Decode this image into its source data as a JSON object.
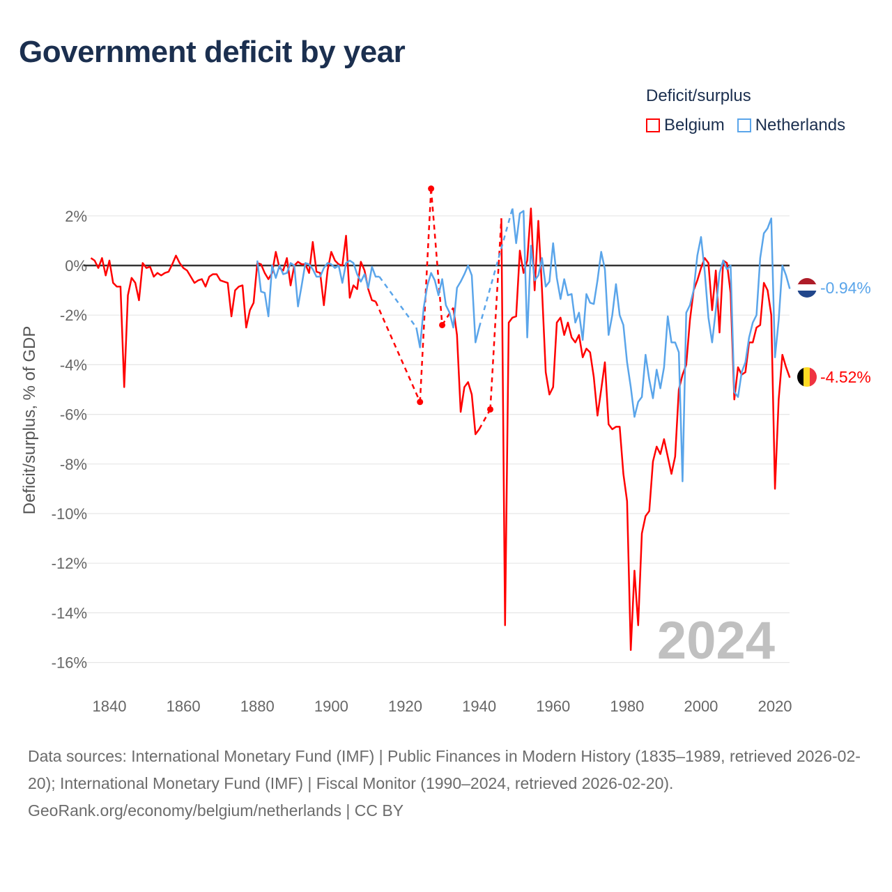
{
  "title": "Government deficit by year",
  "legend": {
    "title": "Deficit/surplus",
    "items": [
      {
        "label": "Belgium",
        "color": "#ff0000"
      },
      {
        "label": "Netherlands",
        "color": "#5aa5ea"
      }
    ]
  },
  "year_overlay": "2024",
  "end_labels": {
    "netherlands": "-0.94%",
    "belgium": "-4.52%"
  },
  "footer": {
    "sources": "Data sources: International Monetary Fund (IMF) | Public Finances in Modern History (1835–1989, retrieved 2026-02-20); International Monetary Fund (IMF) | Fiscal Monitor (1990–2024, retrieved 2026-02-20).",
    "credit": "GeoRank.org/economy/belgium/netherlands | CC BY"
  },
  "chart_data": {
    "type": "line",
    "title": "Government deficit by year",
    "xlabel": "",
    "ylabel": "Deficit/surplus, % of GDP",
    "xlim": [
      1835,
      2024
    ],
    "ylim": [
      -16,
      3.2
    ],
    "xticks": [
      1840,
      1860,
      1880,
      1900,
      1920,
      1940,
      1960,
      1980,
      2000,
      2020
    ],
    "yticks": [
      2,
      0,
      -2,
      -4,
      -6,
      -8,
      -10,
      -12,
      -14,
      -16
    ],
    "ytick_labels": [
      "2%",
      "0%",
      "-2%",
      "-4%",
      "-6%",
      "-8%",
      "-10%",
      "-12%",
      "-14%",
      "-16%"
    ],
    "grid": true,
    "legend_position": "top-right",
    "series": [
      {
        "name": "Belgium",
        "color": "#ff0000",
        "start_year": 1835,
        "values": [
          0.3,
          0.2,
          -0.1,
          0.3,
          -0.4,
          0.2,
          -0.7,
          -0.85,
          -0.85,
          -4.9,
          -1.2,
          -0.5,
          -0.7,
          -1.4,
          0.1,
          -0.1,
          -0.05,
          -0.45,
          -0.3,
          -0.4,
          -0.3,
          -0.25,
          0.05,
          0.4,
          0.1,
          -0.1,
          -0.2,
          -0.45,
          -0.7,
          -0.6,
          -0.55,
          -0.85,
          -0.45,
          -0.35,
          -0.35,
          -0.6,
          -0.65,
          -0.7,
          -2.05,
          -1.0,
          -0.85,
          -0.8,
          -2.5,
          -1.8,
          -1.5,
          0.1,
          0.05,
          -0.3,
          -0.55,
          -0.3,
          0.55,
          -0.1,
          -0.2,
          0.3,
          -0.8,
          0.0,
          0.15,
          0.05,
          0.05,
          -0.3,
          0.95,
          -0.25,
          -0.3,
          -1.6,
          -0.2,
          0.55,
          0.2,
          0.05,
          0.0,
          1.2,
          -1.3,
          -0.8,
          -0.95,
          0.15,
          -0.2,
          -0.95,
          -1.4,
          -1.45,
          null,
          null,
          null,
          null,
          null,
          null,
          null,
          null,
          null,
          null,
          null,
          -5.5,
          null,
          null,
          3.1,
          null,
          null,
          -2.4,
          null,
          null,
          -1.7,
          -2.8,
          -5.9,
          -4.9,
          -4.7,
          -5.2,
          -6.8,
          -6.6,
          null,
          null,
          -5.8,
          null,
          null,
          1.9,
          -14.5,
          -2.3,
          -2.1,
          -2.05,
          0.6,
          -0.3,
          0.2,
          2.3,
          -1.0,
          1.8,
          -1.0,
          -4.3,
          -5.2,
          -4.9,
          -2.3,
          -2.1,
          -2.8,
          -2.3,
          -2.9,
          -3.1,
          -2.8,
          -3.7,
          -3.35,
          -3.5,
          -4.5,
          -6.05,
          -5.0,
          -3.9,
          -6.4,
          -6.6,
          -6.5,
          -6.5,
          -8.4,
          -9.5,
          -15.5,
          -12.3,
          -14.5,
          -10.8,
          -10.1,
          -9.9,
          -7.9,
          -7.3,
          -7.6,
          -7.0,
          -7.7,
          -8.4,
          -7.7,
          -5.0,
          -4.4,
          -4.0,
          -2.2,
          -1.0,
          -0.6,
          -0.1,
          0.3,
          0.1,
          -1.8,
          -0.2,
          -2.7,
          0.2,
          0.1,
          -1.1,
          -5.4,
          -4.1,
          -4.4,
          -4.3,
          -3.1,
          -3.1,
          -2.5,
          -2.4,
          -0.7,
          -1.0,
          -2.0,
          -9.0,
          -5.4,
          -3.6,
          -4.1,
          -4.52
        ]
      },
      {
        "name": "Netherlands",
        "color": "#5aa5ea",
        "start_year": 1880,
        "values": [
          0.2,
          -1.05,
          -1.1,
          -2.05,
          0.0,
          -0.5,
          0.0,
          -0.35,
          -0.3,
          0.1,
          0.0,
          -1.65,
          -0.8,
          0.1,
          0.05,
          -0.15,
          -0.45,
          -0.45,
          -0.1,
          0.1,
          0.05,
          -0.1,
          0.0,
          -0.7,
          0.1,
          0.2,
          0.1,
          -0.35,
          -0.65,
          -0.35,
          -0.9,
          -0.05,
          -0.45,
          -0.45,
          null,
          null,
          null,
          null,
          null,
          null,
          null,
          null,
          null,
          -2.5,
          -3.3,
          -1.7,
          -0.8,
          -0.3,
          -0.6,
          -1.2,
          -0.55,
          -1.6,
          -1.9,
          -2.5,
          -0.9,
          -0.65,
          -0.35,
          0.0,
          -0.4,
          -3.1,
          -2.5,
          null,
          null,
          null,
          null,
          null,
          null,
          null,
          null,
          2.3,
          0.9,
          2.1,
          2.2,
          -2.9,
          0.8,
          -0.6,
          -0.4,
          0.3,
          -0.85,
          -0.65,
          0.9,
          -0.5,
          -1.35,
          -0.55,
          -1.2,
          -1.15,
          -2.3,
          -1.9,
          -3.0,
          -1.15,
          -1.5,
          -1.55,
          -0.6,
          0.55,
          -0.15,
          -2.8,
          -2.0,
          -0.75,
          -2.0,
          -2.4,
          -3.9,
          -4.9,
          -6.1,
          -5.5,
          -5.3,
          -3.6,
          -4.6,
          -5.35,
          -4.2,
          -4.95,
          -4.1,
          -2.05,
          -3.1,
          -3.1,
          -3.5,
          -8.7,
          -1.9,
          -1.6,
          -1.0,
          0.4,
          1.15,
          -0.25,
          -2.1,
          -3.1,
          -1.8,
          -0.3,
          0.2,
          -0.15,
          0.0,
          -5.1,
          -5.3,
          -4.3,
          -3.9,
          -2.9,
          -2.3,
          -2.0,
          0.3,
          1.3,
          1.5,
          1.9,
          -3.7,
          -2.2,
          0.0,
          -0.4,
          -0.94
        ]
      }
    ]
  }
}
